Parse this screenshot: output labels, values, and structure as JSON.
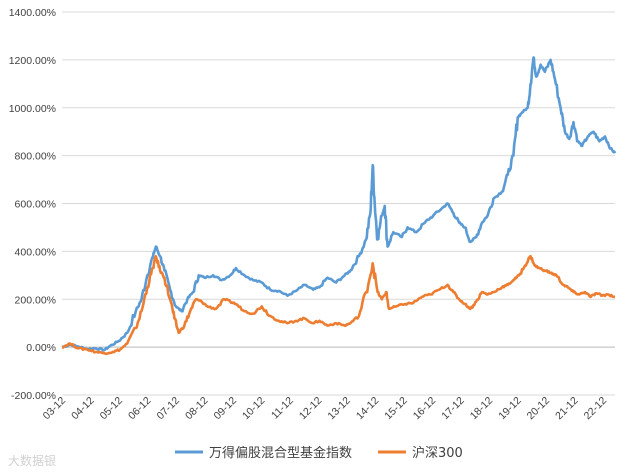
{
  "chart_data": {
    "type": "line",
    "title": "",
    "xlabel": "",
    "ylabel": "",
    "ylim": [
      -200,
      1400
    ],
    "y_ticks": [
      -200,
      0,
      200,
      400,
      600,
      800,
      1000,
      1200,
      1400
    ],
    "y_tick_labels": [
      "-200.00%",
      "0.00%",
      "200.00%",
      "400.00%",
      "600.00%",
      "800.00%",
      "1000.00%",
      "1200.00%",
      "1400.00%"
    ],
    "x_tick_labels": [
      "03-12",
      "04-12",
      "05-12",
      "06-12",
      "07-12",
      "08-12",
      "09-12",
      "10-12",
      "11-12",
      "12-12",
      "13-12",
      "14-12",
      "15-12",
      "16-12",
      "17-12",
      "18-12",
      "19-12",
      "20-12",
      "21-12",
      "22-12"
    ],
    "xlim": [
      2003.92,
      2023.25
    ],
    "grid": "horizontal",
    "legend_position": "bottom",
    "series": [
      {
        "name": "万得偏股混合型基金指数",
        "color": "#5b9bd5",
        "points": [
          [
            2003.92,
            0
          ],
          [
            2004.2,
            10
          ],
          [
            2004.5,
            2
          ],
          [
            2004.8,
            -8
          ],
          [
            2005.1,
            -5
          ],
          [
            2005.4,
            -12
          ],
          [
            2005.6,
            5
          ],
          [
            2005.9,
            25
          ],
          [
            2006.2,
            60
          ],
          [
            2006.5,
            150
          ],
          [
            2006.7,
            200
          ],
          [
            2006.9,
            300
          ],
          [
            2007.1,
            380
          ],
          [
            2007.2,
            420
          ],
          [
            2007.35,
            380
          ],
          [
            2007.5,
            320
          ],
          [
            2007.7,
            240
          ],
          [
            2007.9,
            170
          ],
          [
            2008.1,
            150
          ],
          [
            2008.3,
            200
          ],
          [
            2008.5,
            230
          ],
          [
            2008.7,
            300
          ],
          [
            2008.9,
            290
          ],
          [
            2009.2,
            300
          ],
          [
            2009.5,
            280
          ],
          [
            2009.8,
            300
          ],
          [
            2010.0,
            330
          ],
          [
            2010.3,
            300
          ],
          [
            2010.6,
            280
          ],
          [
            2010.9,
            270
          ],
          [
            2011.2,
            240
          ],
          [
            2011.5,
            235
          ],
          [
            2011.8,
            215
          ],
          [
            2012.1,
            235
          ],
          [
            2012.4,
            260
          ],
          [
            2012.7,
            240
          ],
          [
            2012.92,
            250
          ],
          [
            2013.2,
            290
          ],
          [
            2013.5,
            270
          ],
          [
            2013.8,
            300
          ],
          [
            2014.0,
            320
          ],
          [
            2014.3,
            380
          ],
          [
            2014.55,
            450
          ],
          [
            2014.7,
            560
          ],
          [
            2014.78,
            760
          ],
          [
            2014.85,
            600
          ],
          [
            2014.95,
            450
          ],
          [
            2015.1,
            550
          ],
          [
            2015.2,
            590
          ],
          [
            2015.3,
            420
          ],
          [
            2015.5,
            480
          ],
          [
            2015.8,
            460
          ],
          [
            2016.0,
            500
          ],
          [
            2016.3,
            480
          ],
          [
            2016.6,
            520
          ],
          [
            2016.9,
            550
          ],
          [
            2017.2,
            580
          ],
          [
            2017.4,
            600
          ],
          [
            2017.6,
            560
          ],
          [
            2017.8,
            520
          ],
          [
            2018.0,
            500
          ],
          [
            2018.2,
            440
          ],
          [
            2018.4,
            460
          ],
          [
            2018.6,
            520
          ],
          [
            2018.8,
            550
          ],
          [
            2019.0,
            620
          ],
          [
            2019.3,
            650
          ],
          [
            2019.5,
            720
          ],
          [
            2019.7,
            800
          ],
          [
            2019.85,
            960
          ],
          [
            2020.0,
            980
          ],
          [
            2020.2,
            1000
          ],
          [
            2020.3,
            1100
          ],
          [
            2020.4,
            1210
          ],
          [
            2020.5,
            1130
          ],
          [
            2020.65,
            1180
          ],
          [
            2020.8,
            1150
          ],
          [
            2021.0,
            1200
          ],
          [
            2021.15,
            1120
          ],
          [
            2021.35,
            1000
          ],
          [
            2021.5,
            900
          ],
          [
            2021.65,
            870
          ],
          [
            2021.8,
            940
          ],
          [
            2021.95,
            860
          ],
          [
            2022.1,
            840
          ],
          [
            2022.3,
            880
          ],
          [
            2022.5,
            900
          ],
          [
            2022.7,
            860
          ],
          [
            2022.9,
            880
          ],
          [
            2023.1,
            830
          ],
          [
            2023.25,
            810
          ]
        ]
      },
      {
        "name": "沪深300",
        "color": "#ed7d31",
        "points": [
          [
            2003.92,
            0
          ],
          [
            2004.2,
            15
          ],
          [
            2004.5,
            -5
          ],
          [
            2004.8,
            -10
          ],
          [
            2005.1,
            -20
          ],
          [
            2005.4,
            -25
          ],
          [
            2005.7,
            -20
          ],
          [
            2005.95,
            -10
          ],
          [
            2006.2,
            15
          ],
          [
            2006.5,
            80
          ],
          [
            2006.7,
            150
          ],
          [
            2006.9,
            250
          ],
          [
            2007.1,
            330
          ],
          [
            2007.2,
            380
          ],
          [
            2007.35,
            320
          ],
          [
            2007.5,
            290
          ],
          [
            2007.7,
            200
          ],
          [
            2007.85,
            120
          ],
          [
            2008.0,
            60
          ],
          [
            2008.2,
            90
          ],
          [
            2008.4,
            150
          ],
          [
            2008.6,
            200
          ],
          [
            2008.8,
            190
          ],
          [
            2009.0,
            170
          ],
          [
            2009.3,
            160
          ],
          [
            2009.6,
            200
          ],
          [
            2009.8,
            190
          ],
          [
            2010.0,
            180
          ],
          [
            2010.3,
            150
          ],
          [
            2010.6,
            140
          ],
          [
            2010.9,
            170
          ],
          [
            2011.2,
            130
          ],
          [
            2011.5,
            110
          ],
          [
            2011.8,
            100
          ],
          [
            2012.1,
            110
          ],
          [
            2012.4,
            120
          ],
          [
            2012.7,
            100
          ],
          [
            2012.92,
            110
          ],
          [
            2013.2,
            90
          ],
          [
            2013.5,
            100
          ],
          [
            2013.8,
            90
          ],
          [
            2014.0,
            100
          ],
          [
            2014.3,
            130
          ],
          [
            2014.55,
            230
          ],
          [
            2014.78,
            350
          ],
          [
            2014.95,
            230
          ],
          [
            2015.1,
            200
          ],
          [
            2015.25,
            230
          ],
          [
            2015.35,
            160
          ],
          [
            2015.6,
            170
          ],
          [
            2015.9,
            180
          ],
          [
            2016.2,
            185
          ],
          [
            2016.5,
            210
          ],
          [
            2016.8,
            220
          ],
          [
            2017.1,
            240
          ],
          [
            2017.4,
            260
          ],
          [
            2017.6,
            230
          ],
          [
            2017.8,
            200
          ],
          [
            2018.0,
            180
          ],
          [
            2018.2,
            160
          ],
          [
            2018.4,
            190
          ],
          [
            2018.6,
            230
          ],
          [
            2018.8,
            220
          ],
          [
            2019.0,
            230
          ],
          [
            2019.3,
            250
          ],
          [
            2019.5,
            260
          ],
          [
            2019.7,
            280
          ],
          [
            2019.9,
            300
          ],
          [
            2020.1,
            340
          ],
          [
            2020.3,
            380
          ],
          [
            2020.45,
            340
          ],
          [
            2020.6,
            330
          ],
          [
            2020.8,
            320
          ],
          [
            2021.0,
            310
          ],
          [
            2021.2,
            300
          ],
          [
            2021.45,
            260
          ],
          [
            2021.6,
            250
          ],
          [
            2021.8,
            230
          ],
          [
            2022.0,
            220
          ],
          [
            2022.2,
            230
          ],
          [
            2022.4,
            210
          ],
          [
            2022.6,
            225
          ],
          [
            2022.8,
            215
          ],
          [
            2023.0,
            220
          ],
          [
            2023.25,
            210
          ]
        ]
      }
    ]
  },
  "watermark": "大数据银"
}
